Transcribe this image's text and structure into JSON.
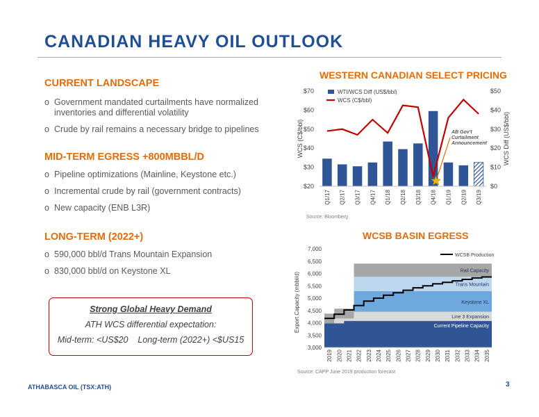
{
  "title": "CANADIAN HEAVY OIL OUTLOOK",
  "sections": [
    {
      "heading": "CURRENT LANDSCAPE",
      "items": [
        "Government mandated curtailments have normalized inventories and differential volatility",
        "Crude by rail remains a necessary bridge to pipelines"
      ]
    },
    {
      "heading": "MID-TERM EGRESS +800MBBL/D",
      "items": [
        "Pipeline optimizations (Mainline, Keystone etc.)",
        "Incremental crude by rail (government contracts)",
        "New capacity (ENB L3R)"
      ]
    },
    {
      "heading": "LONG-TERM (2022+)",
      "items": [
        "590,000 bbl/d Trans Mountain Expansion",
        "830,000 bbl/d on Keystone XL"
      ]
    }
  ],
  "bullet_mark": "o",
  "callout": {
    "line1": "Strong Global Heavy Demand",
    "line2": "ATH WCS differential expectation:",
    "line3": "Mid-term: <US$20    Long-term (2022+) <$US15"
  },
  "footer": "ATHABASCA OIL (TSX:ATH)",
  "page_number": "3",
  "chart_data": [
    {
      "type": "bar",
      "title": "WESTERN CANADIAN SELECT PRICING",
      "categories": [
        "Q1/17",
        "Q2/17",
        "Q3/17",
        "Q4/17",
        "Q1/18",
        "Q2/18",
        "Q3/18",
        "Q4/18",
        "Q1/19",
        "Q2/19",
        "Q3/19"
      ],
      "series": [
        {
          "name": "WTI/WCS Diff (US$/bbl)",
          "type": "bar",
          "axis": "right",
          "color": "#2f5597",
          "values": [
            14.5,
            11.5,
            10.5,
            12.5,
            23.5,
            19.5,
            22.5,
            39.5,
            12.5,
            11.0,
            12.5
          ],
          "hatched_last": true
        },
        {
          "name": "WCS (C$/bbl)",
          "type": "line",
          "axis": "left",
          "color": "#c00000",
          "values": [
            49,
            50,
            47,
            55,
            48,
            62.5,
            61.5,
            25,
            56,
            65.5,
            58
          ]
        }
      ],
      "ylabel": "WCS (C$/bbl)",
      "ylabel_right": "WCS Diff (US$/bbl)",
      "ylim": [
        20,
        70
      ],
      "ylim_right": [
        0,
        50
      ],
      "yticks": [
        "$20",
        "$30",
        "$40",
        "$50",
        "$60",
        "$70"
      ],
      "yticks_right": [
        "$0",
        "$10",
        "$20",
        "$30",
        "$40",
        "$50"
      ],
      "annotation": {
        "lines": [
          "AB Gov't",
          "Curtailment",
          "Announcement"
        ],
        "category": "Q4/18"
      },
      "source": "Source: Bloomberg"
    },
    {
      "type": "area",
      "title": "WCSB BASIN EGRESS",
      "x": [
        "2019",
        "2020",
        "2021",
        "2022",
        "2023",
        "2024",
        "2025",
        "2026",
        "2027",
        "2028",
        "2029",
        "2030",
        "2031",
        "2032",
        "2033",
        "2034",
        "2035"
      ],
      "ylabel": "Export Capacity (mbbl/d)",
      "ylim": [
        3000,
        7000
      ],
      "yticks": [
        "3,000",
        "3,500",
        "4,000",
        "4,500",
        "5,000",
        "5,500",
        "6,000",
        "6,500",
        "7,000"
      ],
      "layers": [
        {
          "name": "Current Pipeline Capacity",
          "color": "#2f5597",
          "top": [
            3975,
            3975,
            4075,
            4075,
            4075,
            4075,
            4075,
            4075,
            4075,
            4075,
            4075,
            4075,
            4075,
            4075,
            4075,
            4075,
            4075
          ]
        },
        {
          "name": "Line 3 Expansion",
          "color": "#d9d9d9",
          "top": [
            3975,
            4175,
            4175,
            4450,
            4450,
            4450,
            4450,
            4450,
            4450,
            4450,
            4450,
            4450,
            4450,
            4450,
            4450,
            4450,
            4450
          ]
        },
        {
          "name": "Keystone XL",
          "color": "#6fa8dc",
          "top": [
            3975,
            4175,
            4175,
            5280,
            5280,
            5280,
            5280,
            5280,
            5280,
            5280,
            5280,
            5280,
            5280,
            5280,
            5280,
            5280,
            5280
          ]
        },
        {
          "name": "Trans Mountain",
          "color": "#bdd7ee",
          "top": [
            3975,
            4175,
            4175,
            5870,
            5870,
            5870,
            5870,
            5870,
            5870,
            5870,
            5870,
            5870,
            5870,
            5870,
            5870,
            5870,
            5870
          ]
        },
        {
          "name": "Rail Capacity",
          "color": "#a6a6a6",
          "top": [
            4375,
            4575,
            4575,
            6400,
            6400,
            6400,
            6400,
            6400,
            6400,
            6400,
            6400,
            6400,
            6400,
            6400,
            6400,
            6400,
            6400
          ]
        }
      ],
      "line": {
        "name": "WCSB Production",
        "color": "#000000",
        "values": [
          4180,
          4350,
          4520,
          4700,
          4880,
          5000,
          5120,
          5220,
          5320,
          5420,
          5500,
          5580,
          5640,
          5700,
          5760,
          5820,
          5860
        ]
      },
      "source": "Source: CAPP June 2019 production forecast"
    }
  ]
}
